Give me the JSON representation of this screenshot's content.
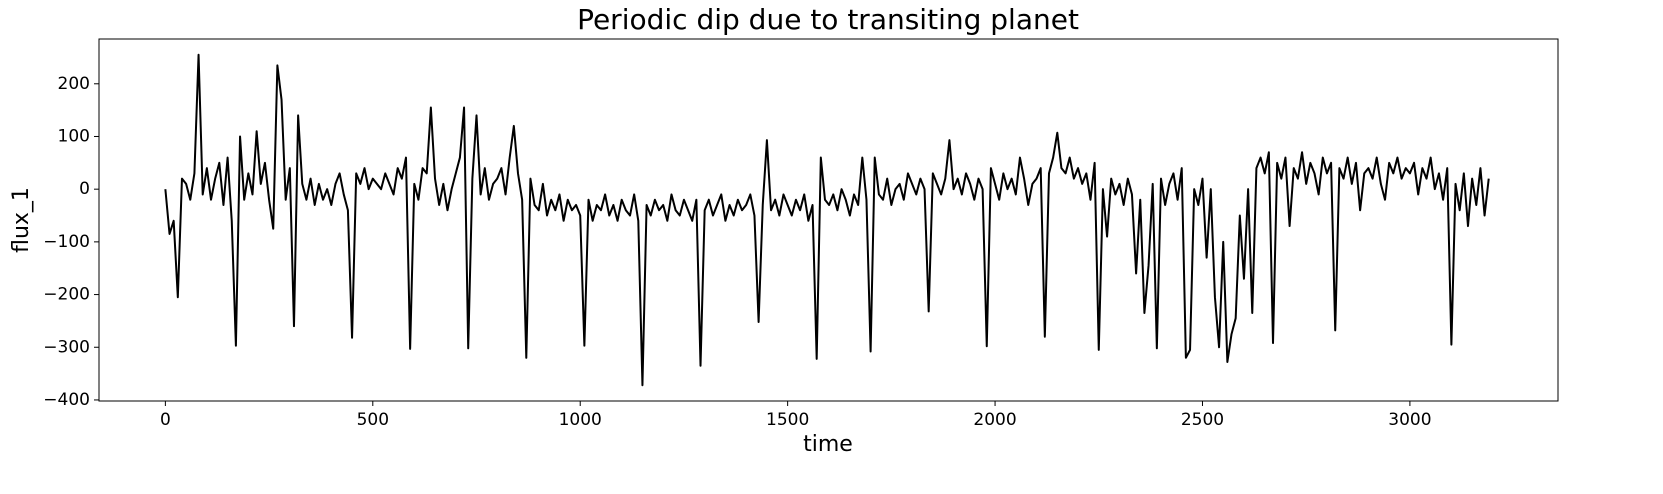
{
  "chart_data": {
    "type": "line",
    "title": "Periodic dip due to transiting planet",
    "x_label": "time",
    "y_label": "flux_1",
    "xlim": [
      -160,
      3357
    ],
    "ylim": [
      -402,
      285
    ],
    "xticks": [
      0,
      500,
      1000,
      1500,
      2000,
      2500,
      3000
    ],
    "yticks": [
      {
        "value": -400,
        "label": "−400"
      },
      {
        "value": -300,
        "label": "−300"
      },
      {
        "value": -200,
        "label": "−200"
      },
      {
        "value": -100,
        "label": "−100"
      },
      0,
      100,
      200
    ],
    "grid": false,
    "series": [
      {
        "name": "flux_1",
        "color": "#000000",
        "x": [
          0,
          10,
          20,
          30,
          40,
          50,
          60,
          70,
          80,
          90,
          100,
          110,
          120,
          130,
          140,
          150,
          160,
          170,
          180,
          190,
          200,
          210,
          220,
          230,
          240,
          250,
          260,
          270,
          280,
          290,
          300,
          310,
          320,
          330,
          340,
          350,
          360,
          370,
          380,
          390,
          400,
          410,
          420,
          430,
          440,
          450,
          460,
          470,
          480,
          490,
          500,
          510,
          520,
          530,
          540,
          550,
          560,
          570,
          580,
          590,
          600,
          610,
          620,
          630,
          640,
          650,
          660,
          670,
          680,
          690,
          700,
          710,
          720,
          730,
          740,
          750,
          760,
          770,
          780,
          790,
          800,
          810,
          820,
          830,
          840,
          850,
          860,
          870,
          880,
          890,
          900,
          910,
          920,
          930,
          940,
          950,
          960,
          970,
          980,
          990,
          1000,
          1010,
          1020,
          1030,
          1040,
          1050,
          1060,
          1070,
          1080,
          1090,
          1100,
          1110,
          1120,
          1130,
          1140,
          1150,
          1160,
          1170,
          1180,
          1190,
          1200,
          1210,
          1220,
          1230,
          1240,
          1250,
          1260,
          1270,
          1280,
          1290,
          1300,
          1310,
          1320,
          1330,
          1340,
          1350,
          1360,
          1370,
          1380,
          1390,
          1400,
          1410,
          1420,
          1430,
          1440,
          1450,
          1460,
          1470,
          1480,
          1490,
          1500,
          1510,
          1520,
          1530,
          1540,
          1550,
          1560,
          1570,
          1580,
          1590,
          1600,
          1610,
          1620,
          1630,
          1640,
          1650,
          1660,
          1670,
          1680,
          1690,
          1700,
          1710,
          1720,
          1730,
          1740,
          1750,
          1760,
          1770,
          1780,
          1790,
          1800,
          1810,
          1820,
          1830,
          1840,
          1850,
          1860,
          1870,
          1880,
          1890,
          1900,
          1910,
          1920,
          1930,
          1940,
          1950,
          1960,
          1970,
          1980,
          1990,
          2000,
          2010,
          2020,
          2030,
          2040,
          2050,
          2060,
          2070,
          2080,
          2090,
          2100,
          2110,
          2120,
          2130,
          2140,
          2150,
          2160,
          2170,
          2180,
          2190,
          2200,
          2210,
          2220,
          2230,
          2240,
          2250,
          2260,
          2270,
          2280,
          2290,
          2300,
          2310,
          2320,
          2330,
          2340,
          2350,
          2360,
          2370,
          2380,
          2390,
          2400,
          2410,
          2420,
          2430,
          2440,
          2450,
          2460,
          2470,
          2480,
          2490,
          2500,
          2510,
          2520,
          2530,
          2540,
          2550,
          2560,
          2570,
          2580,
          2590,
          2600,
          2610,
          2620,
          2630,
          2640,
          2650,
          2660,
          2670,
          2680,
          2690,
          2700,
          2710,
          2720,
          2730,
          2740,
          2750,
          2760,
          2770,
          2780,
          2790,
          2800,
          2810,
          2820,
          2830,
          2840,
          2850,
          2860,
          2870,
          2880,
          2890,
          2900,
          2910,
          2920,
          2930,
          2940,
          2950,
          2960,
          2970,
          2980,
          2990,
          3000,
          3010,
          3020,
          3030,
          3040,
          3050,
          3060,
          3070,
          3080,
          3090,
          3100,
          3110,
          3120,
          3130,
          3140,
          3150,
          3160,
          3170,
          3180,
          3190
        ],
        "values": [
          0,
          -85,
          -60,
          -205,
          20,
          10,
          -20,
          30,
          255,
          -10,
          40,
          -20,
          20,
          50,
          -30,
          60,
          -60,
          -297,
          100,
          -20,
          30,
          -10,
          110,
          10,
          50,
          -20,
          -75,
          235,
          170,
          -20,
          40,
          -260,
          140,
          10,
          -20,
          20,
          -30,
          10,
          -20,
          0,
          -30,
          10,
          30,
          -10,
          -40,
          -282,
          30,
          10,
          40,
          0,
          20,
          10,
          0,
          30,
          10,
          -10,
          40,
          20,
          60,
          -303,
          10,
          -20,
          40,
          30,
          155,
          20,
          -30,
          10,
          -40,
          0,
          30,
          60,
          155,
          -302,
          20,
          140,
          -10,
          40,
          -20,
          10,
          20,
          40,
          -10,
          60,
          120,
          30,
          -20,
          -320,
          20,
          -30,
          -40,
          10,
          -50,
          -20,
          -40,
          -10,
          -60,
          -20,
          -40,
          -30,
          -50,
          -297,
          -20,
          -60,
          -30,
          -40,
          -10,
          -50,
          -30,
          -60,
          -20,
          -40,
          -50,
          -10,
          -60,
          -372,
          -30,
          -50,
          -20,
          -40,
          -30,
          -60,
          -10,
          -40,
          -50,
          -20,
          -40,
          -60,
          -20,
          -335,
          -40,
          -20,
          -50,
          -30,
          -10,
          -60,
          -30,
          -50,
          -20,
          -40,
          -30,
          -10,
          -50,
          -252,
          -30,
          93,
          -40,
          -20,
          -50,
          -10,
          -30,
          -50,
          -20,
          -40,
          -10,
          -60,
          -30,
          -322,
          60,
          -20,
          -30,
          -10,
          -40,
          0,
          -20,
          -50,
          -10,
          -30,
          60,
          -20,
          -308,
          60,
          -10,
          -20,
          20,
          -30,
          0,
          10,
          -20,
          30,
          10,
          -10,
          20,
          0,
          -232,
          30,
          10,
          -10,
          20,
          93,
          0,
          20,
          -10,
          30,
          10,
          -20,
          20,
          0,
          -298,
          40,
          10,
          -20,
          30,
          0,
          20,
          -10,
          60,
          20,
          -30,
          10,
          20,
          40,
          -280,
          30,
          60,
          107,
          40,
          30,
          60,
          20,
          40,
          10,
          30,
          -20,
          50,
          -305,
          0,
          -90,
          20,
          -10,
          10,
          -30,
          20,
          -10,
          -160,
          -20,
          -235,
          -145,
          10,
          -302,
          20,
          -30,
          10,
          30,
          -20,
          40,
          -320,
          -305,
          0,
          -30,
          20,
          -130,
          0,
          -205,
          -300,
          -100,
          -328,
          -275,
          -245,
          -50,
          -170,
          0,
          -235,
          40,
          60,
          30,
          70,
          -292,
          50,
          20,
          60,
          -70,
          40,
          20,
          70,
          10,
          50,
          30,
          -10,
          60,
          30,
          50,
          -268,
          40,
          20,
          60,
          10,
          50,
          -40,
          30,
          40,
          20,
          60,
          10,
          -20,
          50,
          30,
          60,
          20,
          40,
          30,
          50,
          -10,
          40,
          20,
          60,
          0,
          30,
          -20,
          40,
          -295,
          10,
          -40,
          30,
          -70,
          20,
          -30,
          40,
          -50,
          20
        ]
      }
    ]
  }
}
